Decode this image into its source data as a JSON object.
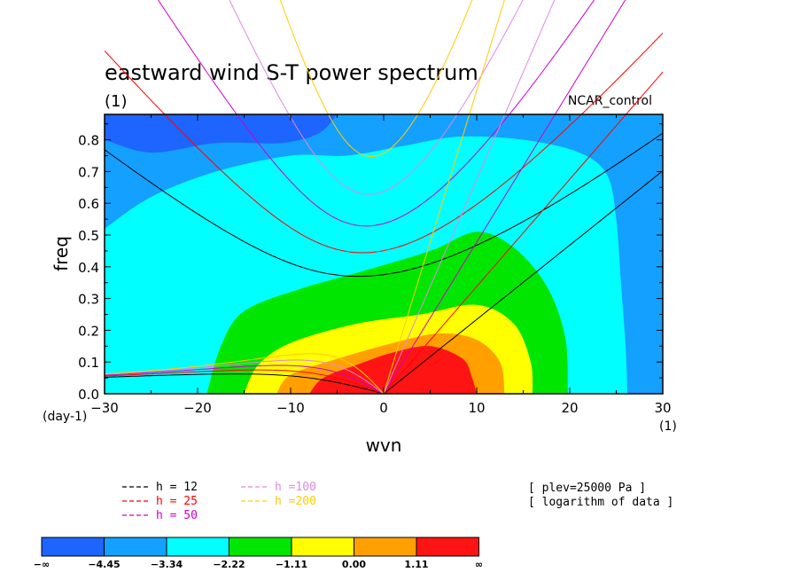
{
  "chart_data": {
    "type": "heatmap",
    "title": "eastward wind S-T power spectrum",
    "subtitle": "(1)",
    "dataset_label": "NCAR_control",
    "xlabel": "wvn",
    "ylabel": "freq",
    "x_unit_label": "(1)",
    "y_unit_label": "(day-1)",
    "xlim": [
      -30,
      30
    ],
    "ylim": [
      0,
      0.88
    ],
    "x_ticks": [
      -30,
      -20,
      -10,
      0,
      10,
      20,
      30
    ],
    "x_tick_labels": [
      "−30",
      "−20",
      "−10",
      "0",
      "10",
      "20",
      "30"
    ],
    "y_ticks": [
      0,
      0.1,
      0.2,
      0.3,
      0.4,
      0.5,
      0.6,
      0.7,
      0.8
    ],
    "y_tick_labels": [
      "0.0",
      "0.1",
      "0.2",
      "0.3",
      "0.4",
      "0.5",
      "0.6",
      "0.7",
      "0.8"
    ],
    "info_lines": [
      "[ plev=25000 Pa ]",
      "[ logarithm of data ]"
    ],
    "colorbar": {
      "labels": [
        "−∞",
        "−4.45",
        "−3.34",
        "−2.22",
        "−1.11",
        "0.00",
        "1.11",
        "∞"
      ],
      "colors": [
        "#1e64ff",
        "#14a0ff",
        "#00ffff",
        "#00e600",
        "#ffff00",
        "#ffa000",
        "#ff1414"
      ]
    },
    "level_regions": [
      {
        "level": "-3.34 to -2.22",
        "color": "#00ffff",
        "boundary": [
          [
            -30,
            0.52
          ],
          [
            -25,
            0.62
          ],
          [
            -18,
            0.7
          ],
          [
            -10,
            0.75
          ],
          [
            -4,
            0.75
          ],
          [
            2,
            0.78
          ],
          [
            8,
            0.81
          ],
          [
            15,
            0.8
          ],
          [
            21,
            0.76
          ],
          [
            24,
            0.69
          ],
          [
            25,
            0.55
          ],
          [
            25.5,
            0.35
          ],
          [
            26,
            0.15
          ],
          [
            26.2,
            0
          ]
        ]
      },
      {
        "level": "-2.22 to -1.11",
        "color": "#00e600",
        "boundary": [
          [
            -19,
            0
          ],
          [
            -17.5,
            0.15
          ],
          [
            -15,
            0.26
          ],
          [
            -9,
            0.33
          ],
          [
            -3,
            0.38
          ],
          [
            5,
            0.45
          ],
          [
            10,
            0.51
          ],
          [
            14,
            0.46
          ],
          [
            17.5,
            0.34
          ],
          [
            19.5,
            0.18
          ],
          [
            19.8,
            0
          ]
        ]
      },
      {
        "level": "-1.11 to 0.00",
        "color": "#ffff00",
        "boundary": [
          [
            -15,
            0
          ],
          [
            -13.5,
            0.09
          ],
          [
            -10,
            0.16
          ],
          [
            -3,
            0.22
          ],
          [
            4,
            0.25
          ],
          [
            10,
            0.28
          ],
          [
            14,
            0.22
          ],
          [
            15.8,
            0.1
          ],
          [
            16,
            0
          ]
        ]
      },
      {
        "level": "0.00 to 1.11",
        "color": "#ffa000",
        "boundary": [
          [
            -11.5,
            0
          ],
          [
            -10,
            0.06
          ],
          [
            -5,
            0.11
          ],
          [
            1,
            0.16
          ],
          [
            6,
            0.19
          ],
          [
            10,
            0.17
          ],
          [
            12.5,
            0.1
          ],
          [
            13,
            0
          ]
        ]
      },
      {
        "level": "1.11 to ∞",
        "color": "#ff1414",
        "boundary": [
          [
            -8,
            0
          ],
          [
            -6.5,
            0.05
          ],
          [
            -3,
            0.09
          ],
          [
            1,
            0.13
          ],
          [
            5,
            0.15
          ],
          [
            8.5,
            0.11
          ],
          [
            9.5,
            0.05
          ],
          [
            10,
            0
          ]
        ]
      }
    ],
    "top_region": {
      "level": "-∞ to -4.45",
      "color": "#1e64ff",
      "boundary": [
        [
          -30,
          0.8
        ],
        [
          -25,
          0.76
        ],
        [
          -18,
          0.79
        ],
        [
          -11,
          0.79
        ],
        [
          -7,
          0.82
        ],
        [
          -5,
          0.88
        ]
      ]
    },
    "dispersion_curves": {
      "legend": [
        {
          "label": "h = 12",
          "h": 12,
          "color": "#000000"
        },
        {
          "label": "h = 25",
          "h": 25,
          "color": "#ff0000"
        },
        {
          "label": "h = 50",
          "h": 50,
          "color": "#cc00cc"
        },
        {
          "label": "h =100",
          "h": 100,
          "color": "#e088e0"
        },
        {
          "label": "h =200",
          "h": 200,
          "color": "#ffcc00"
        }
      ]
    }
  }
}
